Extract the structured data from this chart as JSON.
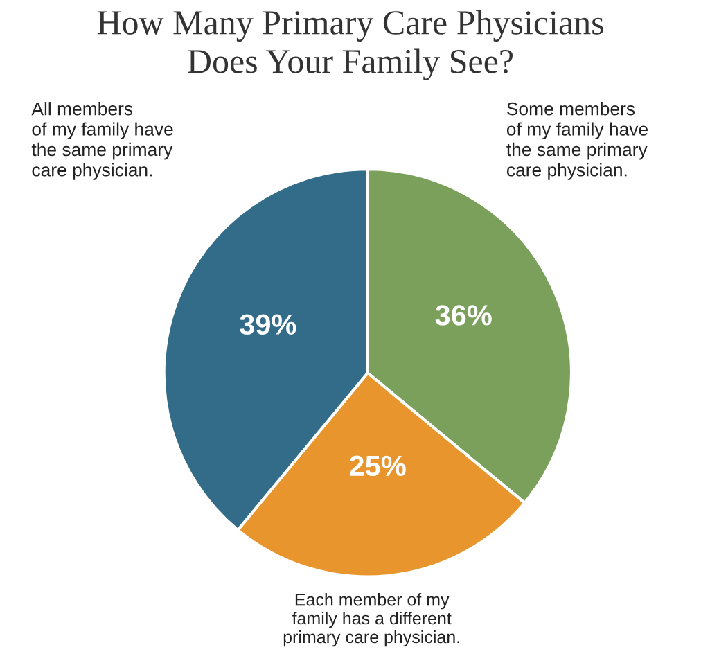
{
  "chart_data": {
    "type": "pie",
    "title": "How Many Primary Care Physicians\nDoes Your Family See?",
    "categories": [
      "Some members\nof my family have\nthe same primary\ncare physician.",
      "Each member of my\nfamily has a different\nprimary care physician.",
      "All members\nof my family have\nthe same primary\ncare physician."
    ],
    "values": [
      36,
      25,
      39
    ],
    "colors": [
      "#7ba05b",
      "#e8952d",
      "#336c88"
    ],
    "value_labels": [
      "36%",
      "25%",
      "39%"
    ]
  }
}
